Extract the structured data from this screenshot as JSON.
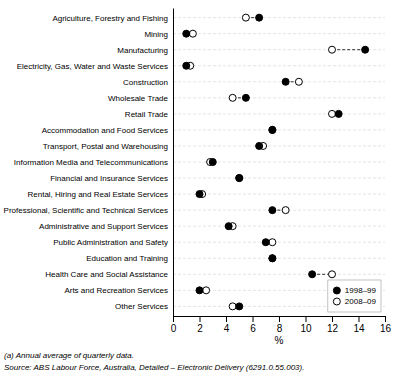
{
  "chart_data": {
    "type": "dumbbell",
    "orientation": "horizontal",
    "categories": [
      "Agriculture, Forestry and Fishing",
      "Mining",
      "Manufacturing",
      "Electricity, Gas, Water and Waste Services",
      "Construction",
      "Wholesale Trade",
      "Retail Trade",
      "Accommodation and Food Services",
      "Transport, Postal and Warehousing",
      "Information Media and Telecommunications",
      "Financial and Insurance Services",
      "Rental, Hiring and Real Estate Services",
      "Professional, Scientific and Technical Services",
      "Administrative and Support Services",
      "Public Administration and Safety",
      "Education and Training",
      "Health Care and Social Assistance",
      "Arts and Recreation Services",
      "Other Services"
    ],
    "series": [
      {
        "name": "1998–99",
        "color": "#000000",
        "marker": "circle",
        "values": [
          6.5,
          1.0,
          14.5,
          1.0,
          8.5,
          5.5,
          12.5,
          7.5,
          6.5,
          3.0,
          5.0,
          2.0,
          7.5,
          4.2,
          7.0,
          7.5,
          10.5,
          2.0,
          5.0
        ]
      },
      {
        "name": "2008–09",
        "color": "#000000",
        "marker": "circle-open",
        "values": [
          5.5,
          1.5,
          12.0,
          1.3,
          9.5,
          4.5,
          12.0,
          7.5,
          6.8,
          2.8,
          5.0,
          2.2,
          8.5,
          4.5,
          7.5,
          7.5,
          12.0,
          2.5,
          4.5
        ]
      }
    ],
    "line_style": "dashed",
    "xlabel": "%",
    "xlim": [
      0,
      16
    ],
    "xticks": [
      0,
      2,
      4,
      6,
      8,
      10,
      12,
      14,
      16
    ],
    "grid": true,
    "legend": "lower right",
    "annotations": [
      "(a) Annual average of quarterly data.",
      "Source: ABS Labour Force, Australia, Detailed – Electronic Delivery (6291.0.55.003)."
    ]
  }
}
